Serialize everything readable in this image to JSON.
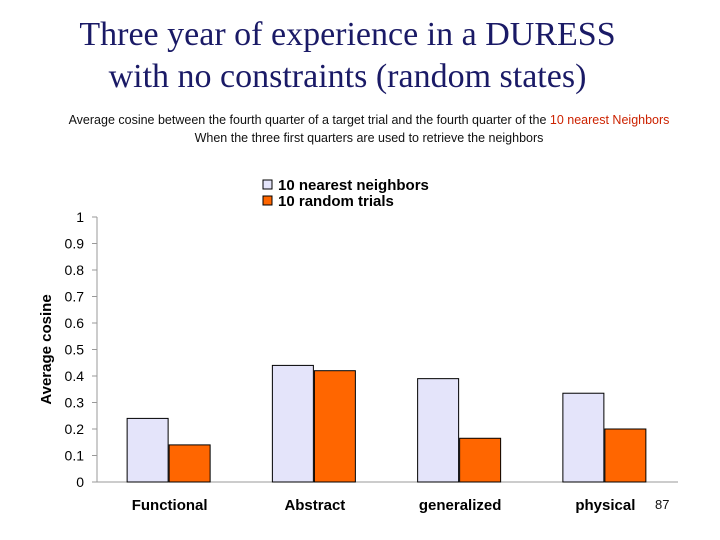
{
  "slide": {
    "title_line1": "Three year of experience in a DURESS",
    "title_line2": "with no constraints (random states)",
    "subtitle_line1_pre": "Average cosine between the fourth quarter of a target trial and the fourth quarter of the ",
    "subtitle_line1_highlight": "10 nearest Neighbors",
    "subtitle_line2": "When the three first quarters are used to retrieve the neighbors",
    "page_number": "87"
  },
  "colors": {
    "highlight": "#cc2200",
    "title": "#1a1a66"
  },
  "chart_data": {
    "type": "bar",
    "categories": [
      "Functional",
      "Abstract",
      "generalized",
      "physical"
    ],
    "series": [
      {
        "name": "10 nearest neighbors",
        "values": [
          0.24,
          0.44,
          0.39,
          0.335
        ],
        "color": "#e4e4fa"
      },
      {
        "name": "10 random trials",
        "values": [
          0.14,
          0.42,
          0.165,
          0.2
        ],
        "color": "#ff6600"
      }
    ],
    "xlabel": "",
    "ylabel": "Average cosine",
    "ylim": [
      0,
      1
    ],
    "yticks": [
      0,
      0.1,
      0.2,
      0.3,
      0.4,
      0.5,
      0.6,
      0.7,
      0.8,
      0.9,
      1
    ],
    "ytick_labels": [
      "0",
      "0.1",
      "0.2",
      "0.3",
      "0.4",
      "0.5",
      "0.6",
      "0.7",
      "0.8",
      "0.9",
      "1"
    ],
    "grid": false,
    "legend_position": "top-center"
  }
}
